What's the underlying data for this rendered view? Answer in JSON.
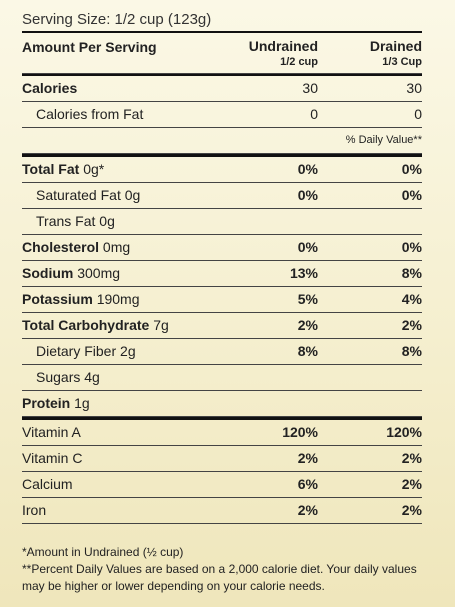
{
  "serving_size": "Serving Size: 1/2 cup (123g)",
  "header": {
    "amount_label": "Amount Per Serving",
    "col1_title": "Undrained",
    "col1_sub": "1/2 cup",
    "col2_title": "Drained",
    "col2_sub": "1/3 Cup"
  },
  "calories": {
    "label": "Calories",
    "col1": "30",
    "col2": "30"
  },
  "calories_from_fat": {
    "label": "Calories from Fat",
    "col1": "0",
    "col2": "0"
  },
  "daily_value_label": "% Daily Value**",
  "nutrients": [
    {
      "name": "Total Fat",
      "amount": "0g*",
      "col1": "0%",
      "col2": "0%",
      "bold": true,
      "indent": false
    },
    {
      "name": "Saturated Fat",
      "amount": "0g",
      "col1": "0%",
      "col2": "0%",
      "bold": false,
      "indent": true
    },
    {
      "name": "Trans Fat",
      "amount": "0g",
      "col1": "",
      "col2": "",
      "bold": false,
      "indent": true
    },
    {
      "name": "Cholesterol",
      "amount": "0mg",
      "col1": "0%",
      "col2": "0%",
      "bold": true,
      "indent": false
    },
    {
      "name": "Sodium",
      "amount": "300mg",
      "col1": "13%",
      "col2": "8%",
      "bold": true,
      "indent": false
    },
    {
      "name": "Potassium",
      "amount": "190mg",
      "col1": "5%",
      "col2": "4%",
      "bold": true,
      "indent": false
    },
    {
      "name": "Total Carbohydrate",
      "amount": "7g",
      "col1": "2%",
      "col2": "2%",
      "bold": true,
      "indent": false
    },
    {
      "name": "Dietary Fiber",
      "amount": "2g",
      "col1": "8%",
      "col2": "8%",
      "bold": false,
      "indent": true
    },
    {
      "name": "Sugars",
      "amount": "4g",
      "col1": "",
      "col2": "",
      "bold": false,
      "indent": true
    },
    {
      "name": "Protein",
      "amount": "1g",
      "col1": "",
      "col2": "",
      "bold": true,
      "indent": false
    }
  ],
  "vitamins": [
    {
      "name": "Vitamin A",
      "col1": "120%",
      "col2": "120%"
    },
    {
      "name": "Vitamin C",
      "col1": "2%",
      "col2": "2%"
    },
    {
      "name": "Calcium",
      "col1": "6%",
      "col2": "2%"
    },
    {
      "name": "Iron",
      "col1": "2%",
      "col2": "2%"
    }
  ],
  "footnotes": {
    "amount_note": "*Amount in Undrained (½ cup)",
    "daily_value_note": "**Percent Daily Values are based on a 2,000 calorie diet. Your daily values may be higher or lower depending on your calorie needs."
  }
}
